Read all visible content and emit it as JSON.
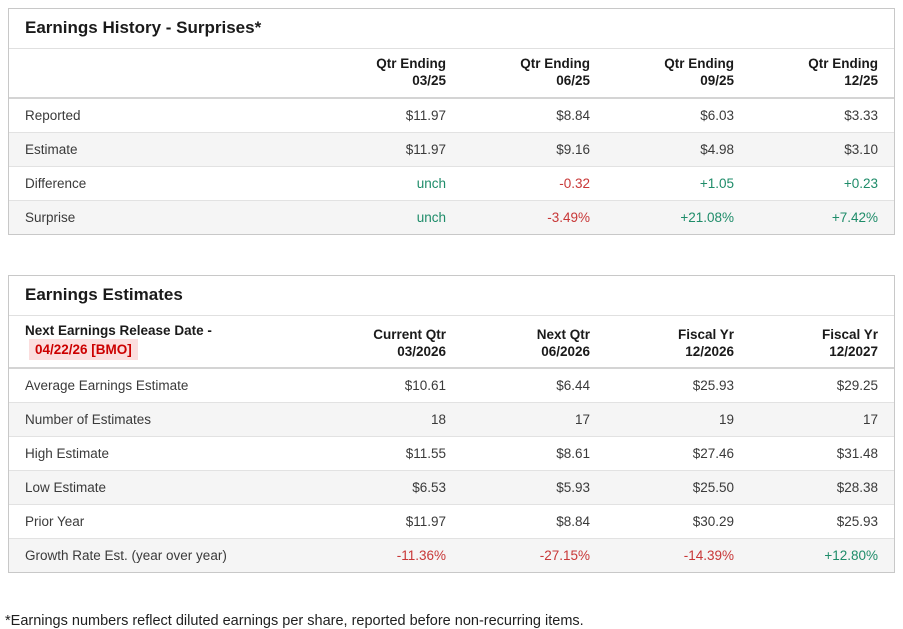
{
  "colors": {
    "up": "#1e8c69",
    "down": "#c83737",
    "date_text": "#cc0000",
    "date_bg": "#fbdede"
  },
  "history": {
    "title": "Earnings History - Surprises*",
    "columns": [
      [
        "Qtr Ending",
        "03/25"
      ],
      [
        "Qtr Ending",
        "06/25"
      ],
      [
        "Qtr Ending",
        "09/25"
      ],
      [
        "Qtr Ending",
        "12/25"
      ]
    ],
    "rows": [
      {
        "label": "Reported",
        "cells": [
          {
            "text": "$11.97"
          },
          {
            "text": "$8.84"
          },
          {
            "text": "$6.03"
          },
          {
            "text": "$3.33"
          }
        ]
      },
      {
        "label": "Estimate",
        "cells": [
          {
            "text": "$11.97"
          },
          {
            "text": "$9.16"
          },
          {
            "text": "$4.98"
          },
          {
            "text": "$3.10"
          }
        ]
      },
      {
        "label": "Difference",
        "cells": [
          {
            "text": "unch",
            "tone": "up"
          },
          {
            "text": "-0.32",
            "tone": "down"
          },
          {
            "text": "+1.05",
            "tone": "up"
          },
          {
            "text": "+0.23",
            "tone": "up"
          }
        ]
      },
      {
        "label": "Surprise",
        "cells": [
          {
            "text": "unch",
            "tone": "up"
          },
          {
            "text": "-3.49%",
            "tone": "down"
          },
          {
            "text": "+21.08%",
            "tone": "up"
          },
          {
            "text": "+7.42%",
            "tone": "up"
          }
        ]
      }
    ]
  },
  "estimates": {
    "title": "Earnings Estimates",
    "release": {
      "label": "Next Earnings Release Date -",
      "date": "04/22/26 [BMO]"
    },
    "columns": [
      [
        "Current Qtr",
        "03/2026"
      ],
      [
        "Next Qtr",
        "06/2026"
      ],
      [
        "Fiscal Yr",
        "12/2026"
      ],
      [
        "Fiscal Yr",
        "12/2027"
      ]
    ],
    "rows": [
      {
        "label": "Average Earnings Estimate",
        "cells": [
          {
            "text": "$10.61"
          },
          {
            "text": "$6.44"
          },
          {
            "text": "$25.93"
          },
          {
            "text": "$29.25"
          }
        ]
      },
      {
        "label": "Number of Estimates",
        "cells": [
          {
            "text": "18"
          },
          {
            "text": "17"
          },
          {
            "text": "19"
          },
          {
            "text": "17"
          }
        ]
      },
      {
        "label": "High Estimate",
        "cells": [
          {
            "text": "$11.55"
          },
          {
            "text": "$8.61"
          },
          {
            "text": "$27.46"
          },
          {
            "text": "$31.48"
          }
        ]
      },
      {
        "label": "Low Estimate",
        "cells": [
          {
            "text": "$6.53"
          },
          {
            "text": "$5.93"
          },
          {
            "text": "$25.50"
          },
          {
            "text": "$28.38"
          }
        ]
      },
      {
        "label": "Prior Year",
        "cells": [
          {
            "text": "$11.97"
          },
          {
            "text": "$8.84"
          },
          {
            "text": "$30.29"
          },
          {
            "text": "$25.93"
          }
        ]
      },
      {
        "label": "Growth Rate Est. (year over year)",
        "cells": [
          {
            "text": "-11.36%",
            "tone": "down"
          },
          {
            "text": "-27.15%",
            "tone": "down"
          },
          {
            "text": "-14.39%",
            "tone": "down"
          },
          {
            "text": "+12.80%",
            "tone": "up"
          }
        ]
      }
    ]
  },
  "footnote": "*Earnings numbers reflect diluted earnings per share, reported before non-recurring items."
}
